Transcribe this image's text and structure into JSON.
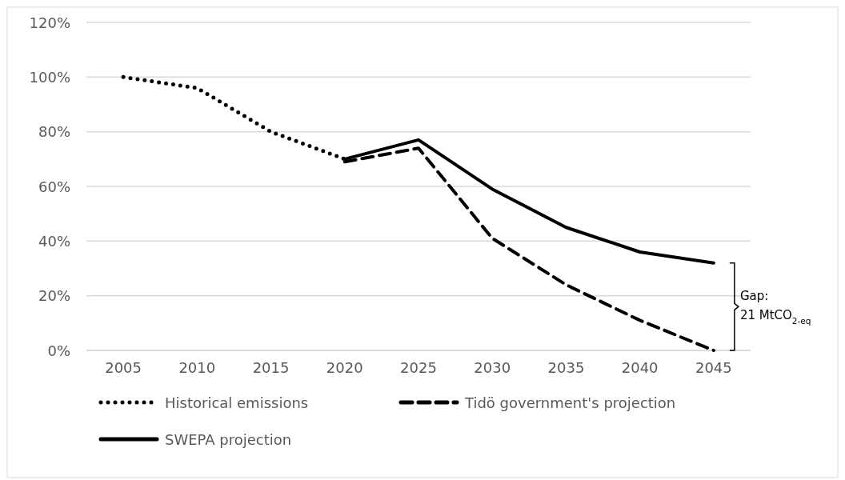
{
  "chart_data": {
    "type": "line",
    "x": [
      2005,
      2010,
      2015,
      2020,
      2025,
      2030,
      2035,
      2040,
      2045
    ],
    "xlim": [
      2002.5,
      2047.5
    ],
    "xticks": [
      2005,
      2010,
      2015,
      2020,
      2025,
      2030,
      2035,
      2040,
      2045
    ],
    "series": [
      {
        "name": "Historical emissions",
        "color": "#000000",
        "line_style": "dotted",
        "values": [
          100,
          96,
          80,
          70,
          null,
          null,
          null,
          null,
          null
        ]
      },
      {
        "name": "Tidö government's projection",
        "color": "#000000",
        "line_style": "dashed",
        "values": [
          null,
          null,
          null,
          69,
          74,
          41,
          24,
          11,
          0
        ]
      },
      {
        "name": "SWEPA projection",
        "color": "#000000",
        "line_style": "solid",
        "values": [
          null,
          null,
          null,
          70,
          77,
          59,
          45,
          36,
          32
        ]
      }
    ],
    "ylim": [
      0,
      120
    ],
    "yticks": [
      {
        "value": 0,
        "label": "0%"
      },
      {
        "value": 20,
        "label": "20%"
      },
      {
        "value": 40,
        "label": "40%"
      },
      {
        "value": 60,
        "label": "60%"
      },
      {
        "value": 80,
        "label": "80%"
      },
      {
        "value": 100,
        "label": "100%"
      },
      {
        "value": 120,
        "label": "120%"
      }
    ],
    "grid": "y",
    "legend": "bottom",
    "marker": "none",
    "annotations": [
      "Gap:",
      "21 MtCO$_{2-eq}$"
    ]
  }
}
